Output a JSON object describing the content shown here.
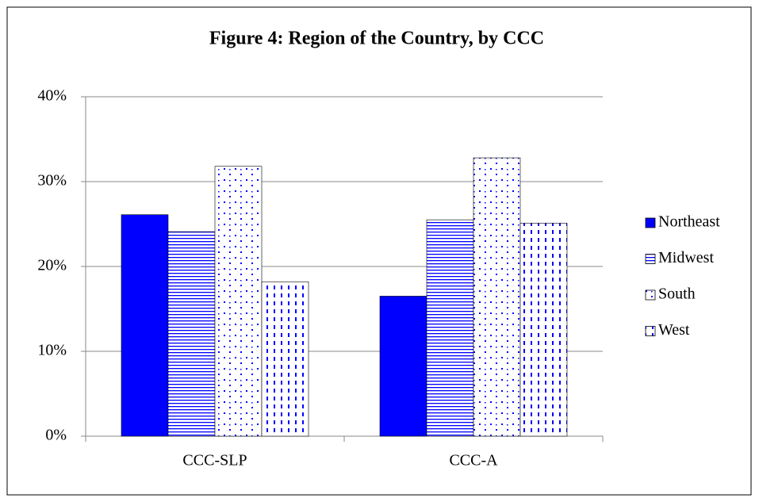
{
  "chart_data": {
    "type": "bar",
    "title": "Figure 4: Region of the Country, by CCC",
    "categories": [
      "CCC-SLP",
      "CCC-A"
    ],
    "series": [
      {
        "name": "Northeast",
        "color": "#0000ff",
        "pattern": "solid",
        "values": [
          26.1,
          16.5
        ]
      },
      {
        "name": "Midwest",
        "color": "#0000ff",
        "pattern": "horizontal",
        "values": [
          24.1,
          25.5
        ]
      },
      {
        "name": "South",
        "color": "#0000ff",
        "pattern": "dots",
        "values": [
          31.8,
          32.8
        ]
      },
      {
        "name": "West",
        "color": "#0000ff",
        "pattern": "dashed-vertical",
        "values": [
          18.2,
          25.1
        ]
      }
    ],
    "ylim": [
      0,
      40
    ],
    "yticks": [
      {
        "value": 0,
        "label": "0%"
      },
      {
        "value": 10,
        "label": "10%"
      },
      {
        "value": 20,
        "label": "20%"
      },
      {
        "value": 30,
        "label": "30%"
      },
      {
        "value": 40,
        "label": "40%"
      }
    ],
    "grid": true,
    "legend": "right"
  }
}
